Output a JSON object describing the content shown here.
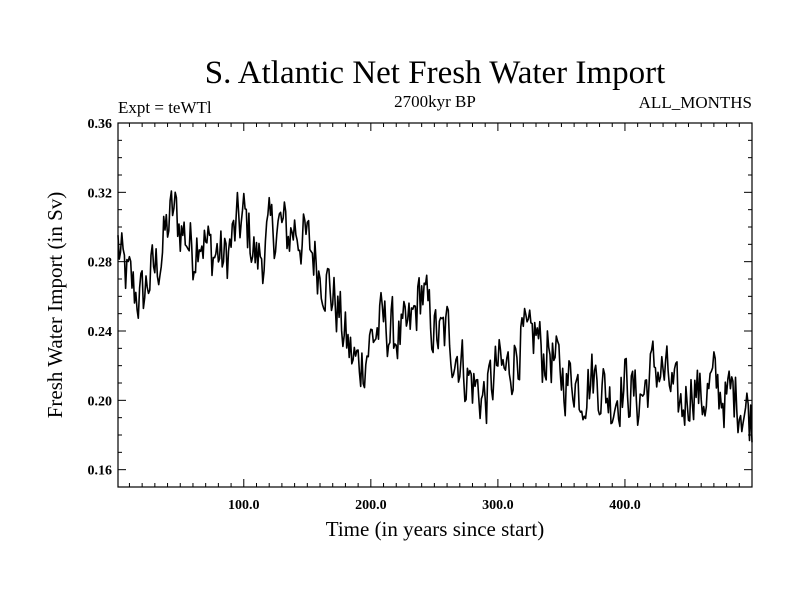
{
  "chart_data": {
    "type": "line",
    "title": "S. Atlantic Net Fresh Water Import",
    "subtitle_left": "Expt = teWTl",
    "subtitle_center": "2700kyr BP",
    "subtitle_right": "ALL_MONTHS",
    "xlabel": "Time (in years since start)",
    "ylabel": "Fresh Water Import (in Sv)",
    "xlim": [
      1,
      500
    ],
    "ylim": [
      0.15,
      0.36
    ],
    "xticks_major": [
      100,
      200,
      300,
      400
    ],
    "xtick_labels": [
      "100.0",
      "200.0",
      "300.0",
      "400.0"
    ],
    "yticks_major": [
      0.16,
      0.2,
      0.24,
      0.28,
      0.32,
      0.36
    ],
    "ytick_labels": [
      "0.16",
      "0.20",
      "0.24",
      "0.28",
      "0.32",
      "0.36"
    ],
    "grid": false,
    "series": [
      {
        "name": "Net fresh water import",
        "x": [
          1,
          5,
          10,
          15,
          20,
          25,
          30,
          35,
          40,
          45,
          50,
          55,
          60,
          65,
          70,
          75,
          80,
          85,
          90,
          95,
          100,
          105,
          110,
          115,
          120,
          125,
          130,
          135,
          140,
          145,
          150,
          155,
          160,
          165,
          170,
          175,
          180,
          185,
          190,
          195,
          200,
          205,
          210,
          215,
          220,
          225,
          230,
          235,
          240,
          245,
          250,
          255,
          260,
          265,
          270,
          275,
          280,
          285,
          290,
          295,
          300,
          305,
          310,
          315,
          320,
          325,
          330,
          335,
          340,
          345,
          350,
          355,
          360,
          365,
          370,
          375,
          380,
          385,
          390,
          395,
          400,
          405,
          410,
          415,
          420,
          425,
          430,
          435,
          440,
          445,
          450,
          455,
          460,
          465,
          470,
          475,
          480,
          485,
          490,
          495,
          500
        ],
        "y": [
          0.29,
          0.275,
          0.268,
          0.262,
          0.258,
          0.27,
          0.275,
          0.285,
          0.3,
          0.31,
          0.3,
          0.295,
          0.285,
          0.3,
          0.29,
          0.285,
          0.285,
          0.28,
          0.29,
          0.3,
          0.305,
          0.295,
          0.28,
          0.285,
          0.295,
          0.3,
          0.3,
          0.295,
          0.3,
          0.295,
          0.29,
          0.285,
          0.275,
          0.27,
          0.26,
          0.25,
          0.235,
          0.225,
          0.22,
          0.225,
          0.235,
          0.24,
          0.245,
          0.24,
          0.238,
          0.235,
          0.24,
          0.25,
          0.265,
          0.25,
          0.24,
          0.235,
          0.24,
          0.23,
          0.225,
          0.215,
          0.21,
          0.205,
          0.2,
          0.21,
          0.22,
          0.215,
          0.22,
          0.23,
          0.235,
          0.23,
          0.24,
          0.225,
          0.23,
          0.22,
          0.215,
          0.21,
          0.215,
          0.205,
          0.21,
          0.215,
          0.21,
          0.205,
          0.2,
          0.205,
          0.21,
          0.205,
          0.2,
          0.205,
          0.215,
          0.22,
          0.215,
          0.21,
          0.2,
          0.195,
          0.205,
          0.21,
          0.2,
          0.205,
          0.21,
          0.205,
          0.2,
          0.205,
          0.2,
          0.195,
          0.19
        ]
      }
    ]
  }
}
